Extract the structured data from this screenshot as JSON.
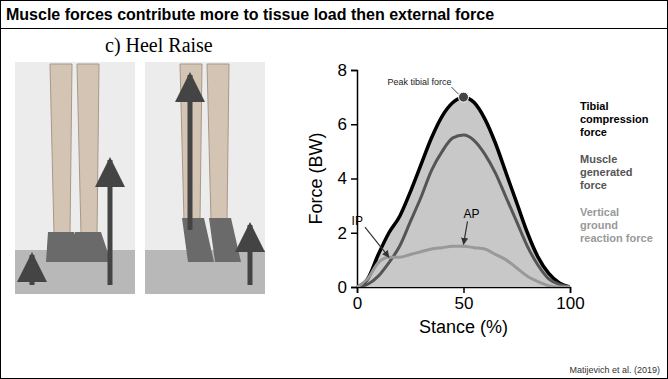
{
  "chart_data": {
    "type": "line",
    "title": "Muscle forces contribute more to tissue load then external force",
    "subtitle": "c) Heel Raise",
    "x_label": "Stance (%)",
    "y_label": "Force (BW)",
    "x": [
      0,
      5,
      10,
      15,
      20,
      25,
      30,
      35,
      40,
      45,
      50,
      55,
      60,
      65,
      70,
      75,
      80,
      85,
      90,
      95,
      100
    ],
    "series": [
      {
        "name": "Tibial compression force",
        "color": "#000000",
        "type": "area",
        "values": [
          0,
          0.3,
          1.2,
          2.0,
          2.6,
          3.5,
          4.5,
          5.5,
          6.3,
          6.8,
          7.0,
          6.8,
          6.2,
          5.3,
          4.2,
          3.1,
          2.0,
          1.1,
          0.5,
          0.15,
          0
        ]
      },
      {
        "name": "Muscle generated force",
        "color": "#555555",
        "type": "line",
        "values": [
          0,
          0.1,
          0.4,
          0.9,
          1.5,
          2.4,
          3.3,
          4.3,
          5.0,
          5.5,
          5.6,
          5.4,
          4.9,
          4.2,
          3.3,
          2.4,
          1.5,
          0.8,
          0.3,
          0.1,
          0
        ]
      },
      {
        "name": "Vertical ground reaction force",
        "color": "#999999",
        "type": "line",
        "values": [
          0,
          0.3,
          0.9,
          1.1,
          1.1,
          1.2,
          1.3,
          1.4,
          1.45,
          1.5,
          1.5,
          1.45,
          1.4,
          1.2,
          1.0,
          0.7,
          0.4,
          0.2,
          0.05,
          0,
          0
        ]
      }
    ],
    "xlim": [
      0,
      100
    ],
    "xticks": [
      0,
      50,
      100
    ],
    "ylim": [
      0,
      8
    ],
    "yticks": [
      0,
      2,
      4,
      6,
      8
    ],
    "legend": "right",
    "annotations": [
      {
        "text": "Peak tibial force",
        "x": 50,
        "y": 7.0
      },
      {
        "text": "IP",
        "x": 15,
        "y": 1.1
      },
      {
        "text": "AP",
        "x": 50,
        "y": 1.5
      }
    ],
    "source": "Matijevich et al. (2019)"
  }
}
